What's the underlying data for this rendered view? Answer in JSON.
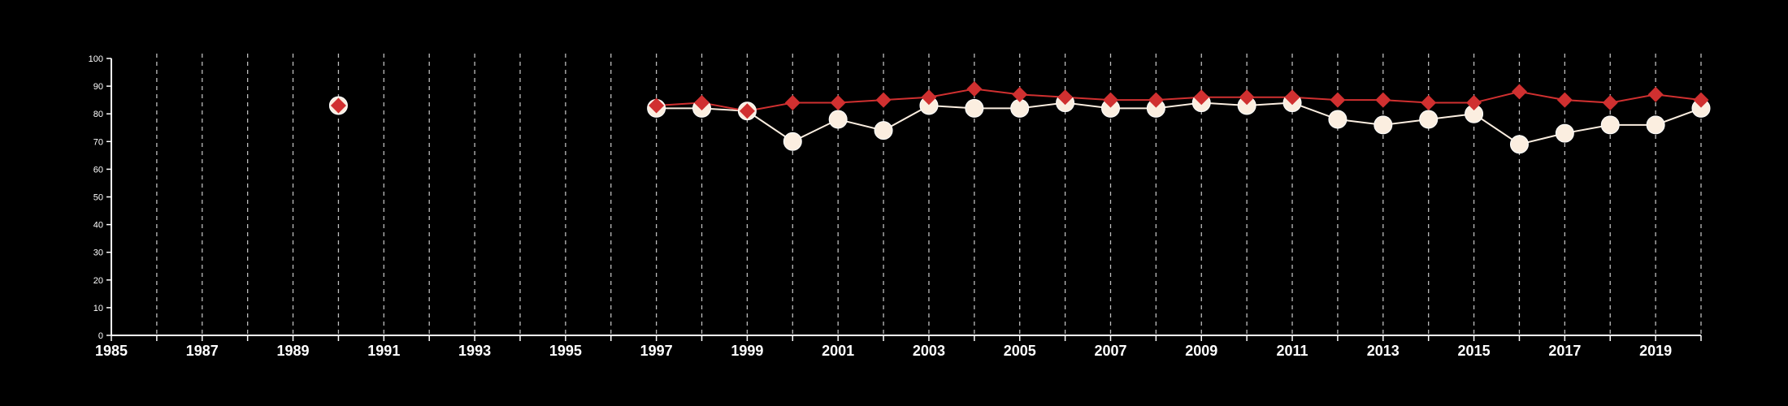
{
  "chart_data": {
    "type": "line",
    "title": "",
    "xlabel": "",
    "ylabel": "",
    "xlim": [
      1985,
      2020
    ],
    "ylim": [
      0,
      100
    ],
    "x_ticks": [
      1985,
      1987,
      1989,
      1991,
      1993,
      1995,
      1997,
      1999,
      2001,
      2003,
      2005,
      2007,
      2009,
      2011,
      2013,
      2015,
      2017,
      2019
    ],
    "x_tick_labels": [
      "1985",
      "1987",
      "1989",
      "1991",
      "1993",
      "1995",
      "1997",
      "1999",
      "2001",
      "2003",
      "2005",
      "2007",
      "2009",
      "2011",
      "2013",
      "2015",
      "2017",
      "2019"
    ],
    "y_ticks": [
      0,
      10,
      20,
      30,
      40,
      50,
      60,
      70,
      80,
      90,
      100
    ],
    "y_tick_labels": [
      "0",
      "10",
      "20",
      "30",
      "40",
      "50",
      "60",
      "70",
      "80",
      "90",
      "100"
    ],
    "grid": "vertical dashed lines at each year",
    "legend": "none",
    "background_color": "#000000",
    "series": [
      {
        "marker": "circle",
        "color": "#fbeee0",
        "points": [
          [
            1990,
            83
          ],
          [
            1997,
            82
          ],
          [
            1998,
            82
          ],
          [
            1999,
            81
          ],
          [
            2000,
            70
          ],
          [
            2001,
            78
          ],
          [
            2002,
            74
          ],
          [
            2003,
            83
          ],
          [
            2004,
            82
          ],
          [
            2005,
            82
          ],
          [
            2006,
            84
          ],
          [
            2007,
            82
          ],
          [
            2008,
            82
          ],
          [
            2009,
            84
          ],
          [
            2010,
            83
          ],
          [
            2011,
            84
          ],
          [
            2012,
            78
          ],
          [
            2013,
            76
          ],
          [
            2014,
            78
          ],
          [
            2015,
            80
          ],
          [
            2016,
            69
          ],
          [
            2017,
            73
          ],
          [
            2018,
            76
          ],
          [
            2019,
            76
          ],
          [
            2020,
            82
          ]
        ]
      },
      {
        "marker": "diamond",
        "color": "#d03030",
        "points": [
          [
            1990,
            83
          ],
          [
            1997,
            83
          ],
          [
            1998,
            84
          ],
          [
            1999,
            81
          ],
          [
            2000,
            84
          ],
          [
            2001,
            84
          ],
          [
            2002,
            85
          ],
          [
            2003,
            86
          ],
          [
            2004,
            89
          ],
          [
            2005,
            87
          ],
          [
            2006,
            86
          ],
          [
            2007,
            85
          ],
          [
            2008,
            85
          ],
          [
            2009,
            86
          ],
          [
            2010,
            86
          ],
          [
            2011,
            86
          ],
          [
            2012,
            85
          ],
          [
            2013,
            85
          ],
          [
            2014,
            84
          ],
          [
            2015,
            84
          ],
          [
            2016,
            88
          ],
          [
            2017,
            85
          ],
          [
            2018,
            84
          ],
          [
            2019,
            87
          ],
          [
            2020,
            85
          ]
        ]
      }
    ]
  }
}
